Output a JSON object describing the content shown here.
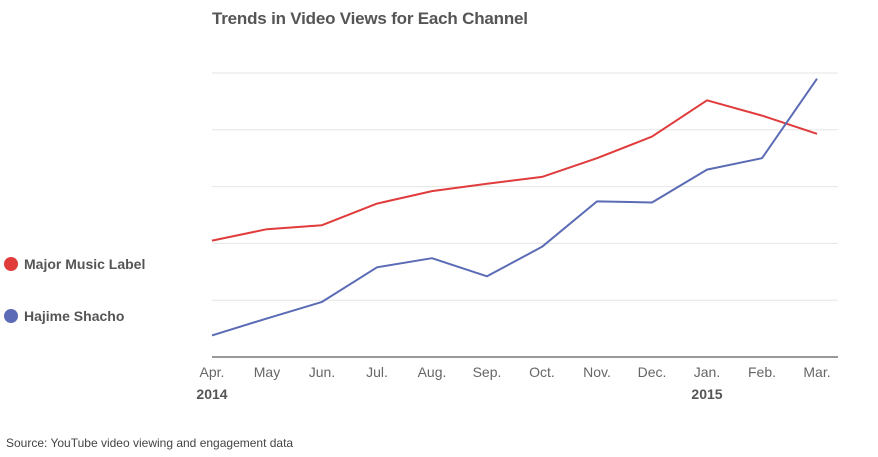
{
  "chart_data": {
    "type": "line",
    "title": "Trends in Video Views for Each Channel",
    "categories": [
      "Apr.",
      "May",
      "Jun.",
      "Jul.",
      "Aug.",
      "Sep.",
      "Oct.",
      "Nov.",
      "Dec.",
      "Jan.",
      "Feb.",
      "Mar."
    ],
    "year_labels": [
      {
        "category_index": 0,
        "label": "2014"
      },
      {
        "category_index": 9,
        "label": "2015"
      }
    ],
    "ylim": [
      0,
      5
    ],
    "y_gridlines": [
      1,
      2,
      3,
      4,
      5
    ],
    "y_tick_labels_visible": false,
    "grid": true,
    "legend_position": "left",
    "series": [
      {
        "name": "Major Music Label",
        "color": "#e03c3c",
        "values": [
          2.05,
          2.25,
          2.32,
          2.7,
          2.92,
          3.05,
          3.17,
          3.5,
          3.88,
          4.52,
          4.25,
          3.93
        ]
      },
      {
        "name": "Hajime Shacho",
        "color": "#5b6bb5",
        "values": [
          0.38,
          0.68,
          0.97,
          1.58,
          1.74,
          1.42,
          1.94,
          2.74,
          2.72,
          3.3,
          3.5,
          4.9
        ]
      }
    ]
  },
  "source": "Source: YouTube video viewing and engagement data"
}
